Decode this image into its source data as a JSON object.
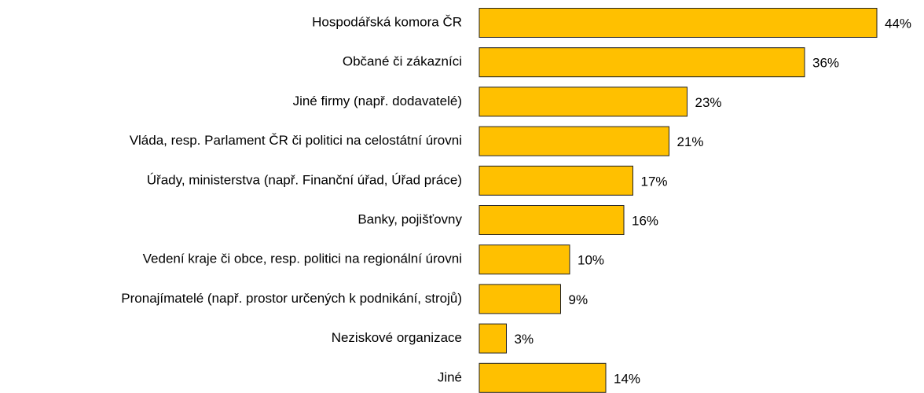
{
  "chart_data": {
    "type": "bar",
    "orientation": "horizontal",
    "categories": [
      "Hospodářská komora ČR",
      "Občané či zákazníci",
      "Jiné firmy (např. dodavatelé)",
      "Vláda, resp. Parlament ČR či politici na celostátní úrovni",
      "Úřady, ministerstva (např. Finanční úřad, Úřad práce)",
      "Banky, pojišťovny",
      "Vedení kraje či obce, resp. politici na regionální úrovni",
      "Pronajímatelé (např. prostor určených k podnikání, strojů)",
      "Neziskové organizace",
      "Jiné"
    ],
    "values": [
      44,
      36,
      23,
      21,
      17,
      16,
      10,
      9,
      3,
      14
    ],
    "value_labels": [
      "44%",
      "36%",
      "23%",
      "21%",
      "17%",
      "16%",
      "10%",
      "9%",
      "3%",
      "14%"
    ],
    "color": "#ffc000"
  }
}
